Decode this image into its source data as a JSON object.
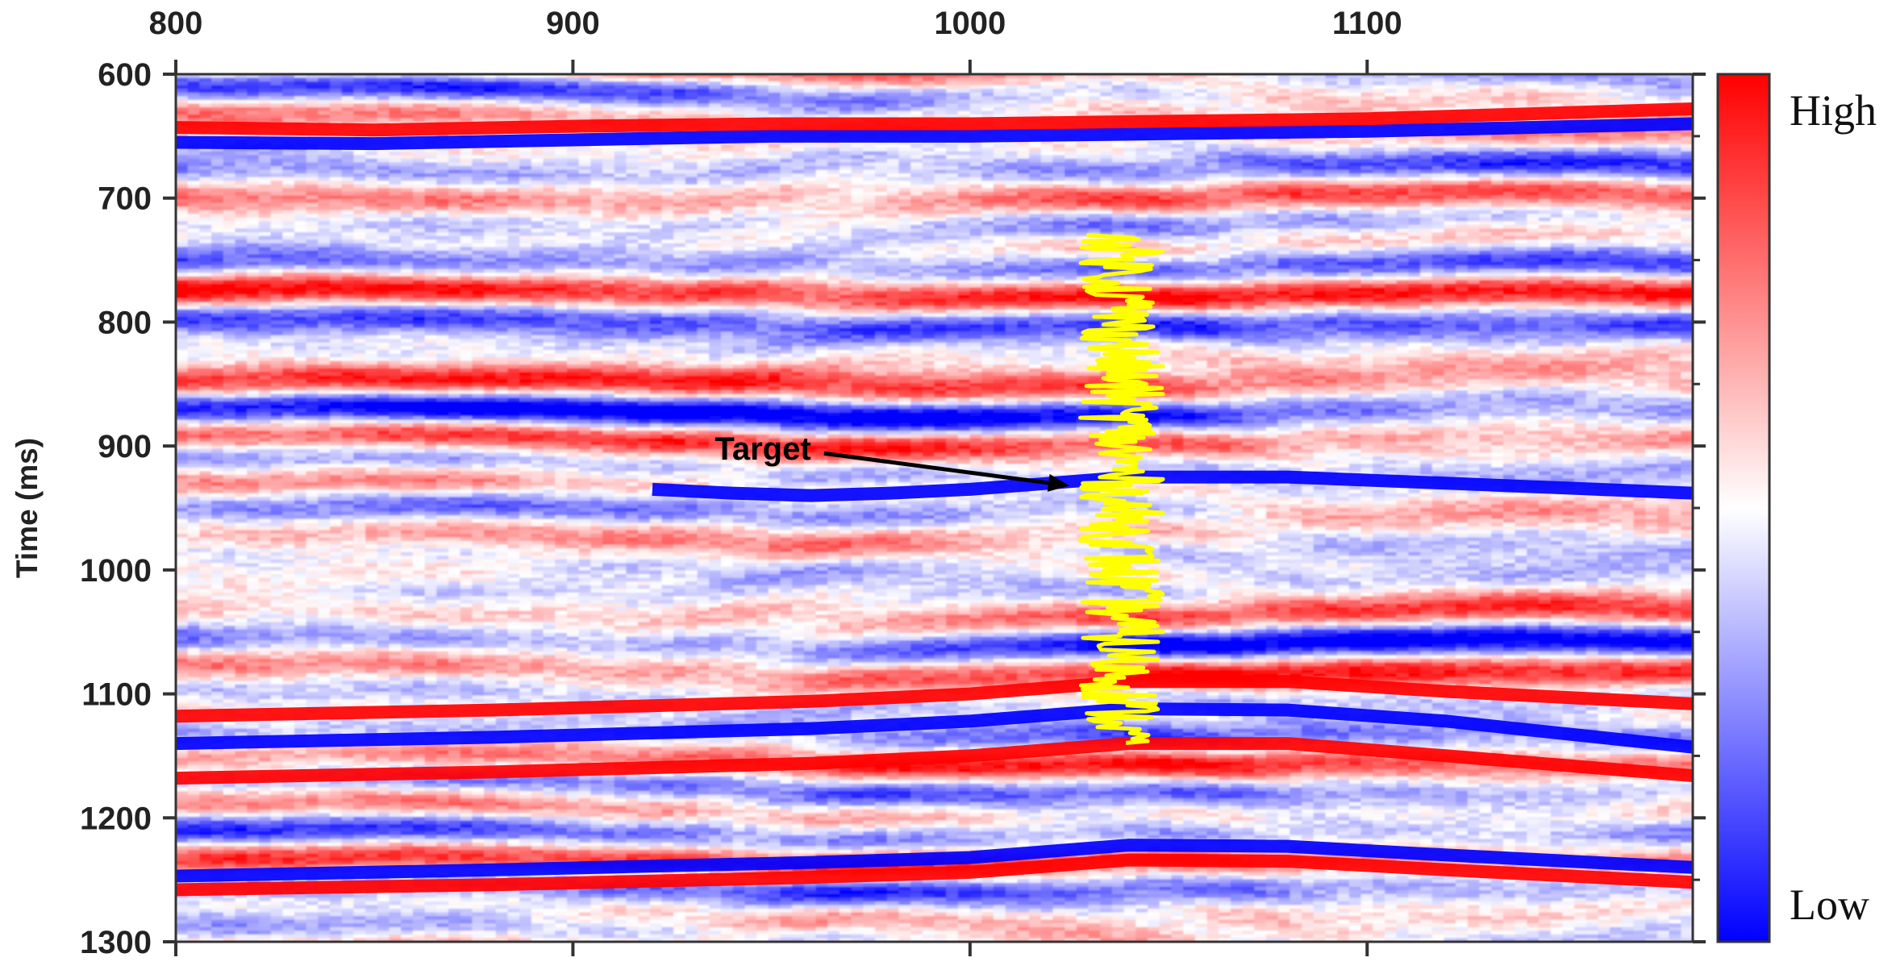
{
  "chart_data": {
    "type": "heatmap",
    "title": "",
    "xlabel": "",
    "ylabel": "Time (ms)",
    "xlim": [
      800,
      1182
    ],
    "ylim": [
      600,
      1300
    ],
    "x_ticks": [
      800,
      900,
      1000,
      1100
    ],
    "y_ticks": [
      600,
      700,
      800,
      900,
      1000,
      1100,
      1200,
      1300
    ],
    "colormap": {
      "high_label": "High",
      "low_label": "Low",
      "high_color": "#ff0000",
      "mid_color": "#ffffff",
      "low_color": "#0000ff"
    },
    "strong_reflectors": [
      {
        "polarity": "positive",
        "x": [
          800,
          880,
          960,
          1000,
          1040,
          1080,
          1120,
          1182
        ],
        "y": [
          1118,
          1113,
          1106,
          1100,
          1090,
          1090,
          1098,
          1108
        ]
      },
      {
        "polarity": "negative",
        "x": [
          800,
          880,
          960,
          1000,
          1040,
          1080,
          1120,
          1182
        ],
        "y": [
          1140,
          1135,
          1128,
          1122,
          1112,
          1113,
          1122,
          1143
        ]
      },
      {
        "polarity": "positive",
        "x": [
          800,
          880,
          960,
          1000,
          1040,
          1080,
          1120,
          1182
        ],
        "y": [
          1168,
          1163,
          1156,
          1150,
          1140,
          1140,
          1150,
          1166
        ]
      },
      {
        "polarity": "negative",
        "x": [
          800,
          880,
          960,
          1000,
          1040,
          1080,
          1120,
          1182
        ],
        "y": [
          1247,
          1242,
          1236,
          1232,
          1222,
          1223,
          1230,
          1240
        ]
      },
      {
        "polarity": "positive",
        "x": [
          800,
          880,
          960,
          1000,
          1040,
          1080,
          1120,
          1182
        ],
        "y": [
          1258,
          1254,
          1248,
          1244,
          1234,
          1235,
          1242,
          1252
        ]
      },
      {
        "polarity": "negative",
        "x": [
          800,
          850,
          900,
          950,
          1000,
          1050,
          1100,
          1182
        ],
        "y": [
          655,
          656,
          653,
          650,
          650,
          648,
          646,
          640
        ]
      },
      {
        "polarity": "positive",
        "x": [
          800,
          850,
          900,
          950,
          1000,
          1050,
          1100,
          1182
        ],
        "y": [
          643,
          645,
          642,
          640,
          640,
          638,
          636,
          628
        ]
      },
      {
        "polarity": "negative",
        "x": [
          920,
          940,
          960,
          980,
          1000,
          1020,
          1040,
          1080,
          1120,
          1182
        ],
        "y": [
          935,
          938,
          940,
          938,
          935,
          930,
          925,
          925,
          930,
          938
        ]
      }
    ],
    "well_log": {
      "color": "#ffff00",
      "x_center": 1036,
      "depth_range": [
        730,
        1140
      ],
      "amplitude_range": [
        -11,
        17
      ]
    },
    "annotations": [
      {
        "text": "Target",
        "x": 962,
        "y": 902,
        "arrow_to_x": 1025,
        "arrow_to_y": 932
      }
    ]
  }
}
